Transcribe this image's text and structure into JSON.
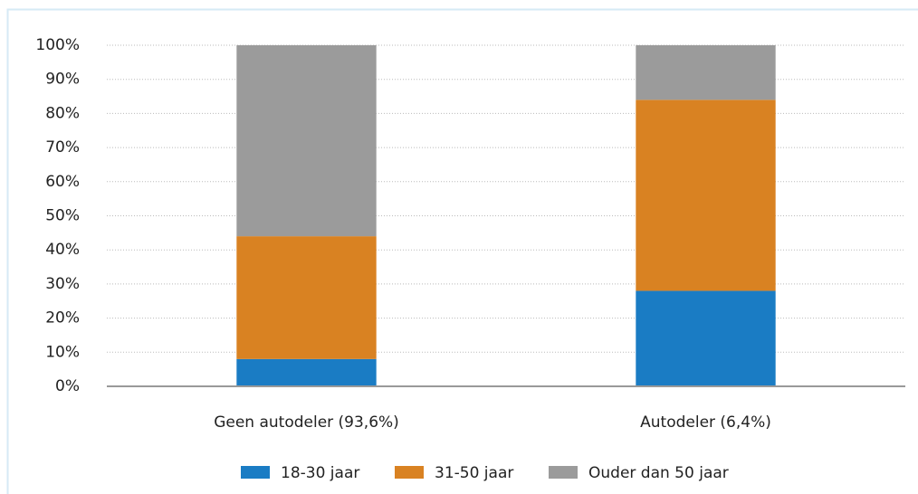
{
  "chart_data": {
    "type": "stacked_bar",
    "categories": [
      "Geen autodeler (93,6%)",
      "Autodeler (6,4%)"
    ],
    "series": [
      {
        "name": "18-30 jaar",
        "color": "#1a7cc4",
        "values": [
          8,
          28
        ]
      },
      {
        "name": "31-50 jaar",
        "color": "#d98222",
        "values": [
          36,
          56
        ]
      },
      {
        "name": "Ouder dan 50 jaar",
        "color": "#9b9b9b",
        "values": [
          56,
          16
        ]
      }
    ],
    "ylim": [
      0,
      100
    ],
    "yticks": [
      {
        "value": 0,
        "label": "0%"
      },
      {
        "value": 10,
        "label": "10%"
      },
      {
        "value": 20,
        "label": "20%"
      },
      {
        "value": 30,
        "label": "30%"
      },
      {
        "value": 40,
        "label": "40%"
      },
      {
        "value": 50,
        "label": "50%"
      },
      {
        "value": 60,
        "label": "60%"
      },
      {
        "value": 70,
        "label": "70%"
      },
      {
        "value": 80,
        "label": "80%"
      },
      {
        "value": 90,
        "label": "90%"
      },
      {
        "value": 100,
        "label": "100%"
      }
    ],
    "grid": true,
    "legend": "bottom"
  }
}
